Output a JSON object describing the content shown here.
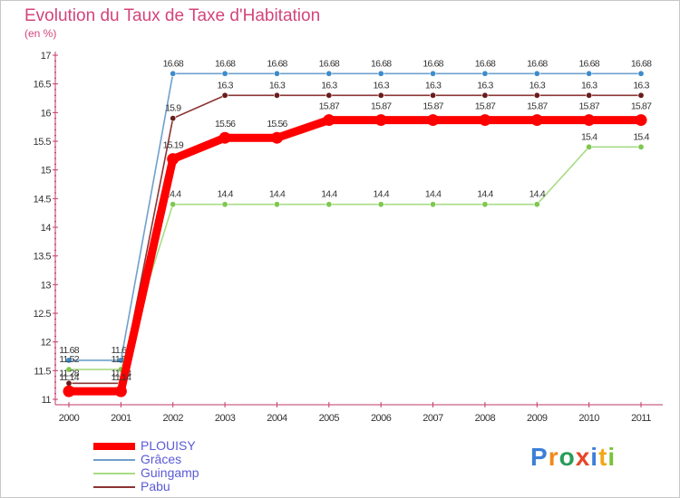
{
  "title": "Evolution du Taux de Taxe d'Habitation",
  "subtitle": "(en %)",
  "logo": {
    "text": "Proxiti",
    "colors": [
      "#3b7fd8",
      "#f08a1a",
      "#2a9c5a",
      "#e8452a",
      "#3b7fd8",
      "#f0a81a",
      "#7cc23a"
    ]
  },
  "chart_data": {
    "type": "line",
    "title": "Evolution du Taux de Taxe d'Habitation",
    "subtitle": "(en %)",
    "xlabel": "",
    "ylabel": "",
    "ylim": [
      11,
      17
    ],
    "yticks": [
      11,
      11.5,
      12,
      12.5,
      13,
      13.5,
      14,
      14.5,
      15,
      15.5,
      16,
      16.5,
      17
    ],
    "ytick_labels": [
      "11",
      "11.5",
      "12",
      "12.5",
      "13",
      "13.5",
      "14",
      "14.5",
      "15",
      "15.5",
      "16",
      "16.5",
      "17"
    ],
    "categories": [
      "2000",
      "2001",
      "2002",
      "2003",
      "2004",
      "2005",
      "2006",
      "2007",
      "2008",
      "2009",
      "2010",
      "2011"
    ],
    "grid": false,
    "legend_position": "bottom-left",
    "series": [
      {
        "name": "Grâces",
        "color": "#6fa0cc",
        "marker_color": "#3d8ccc",
        "values": [
          11.68,
          11.68,
          16.68,
          16.68,
          16.68,
          16.68,
          16.68,
          16.68,
          16.68,
          16.68,
          16.68,
          16.68
        ],
        "labels": [
          "11.68",
          "11.68",
          "16.68",
          "16.68",
          "16.68",
          "16.68",
          "16.68",
          "16.68",
          "16.68",
          "16.68",
          "16.68",
          "16.68"
        ]
      },
      {
        "name": "Guingamp",
        "color": "#a8dc84",
        "marker_color": "#7ec850",
        "values": [
          11.52,
          11.52,
          14.4,
          14.4,
          14.4,
          14.4,
          14.4,
          14.4,
          14.4,
          14.4,
          15.4,
          15.4
        ],
        "labels": [
          "11.52",
          "11.52",
          "14.4",
          "14.4",
          "14.4",
          "14.4",
          "14.4",
          "14.4",
          "14.4",
          "14.4",
          "15.4",
          "15.4"
        ]
      },
      {
        "name": "Pabu",
        "color": "#8c3434",
        "marker_color": "#6a1c1c",
        "values": [
          11.28,
          11.28,
          15.9,
          16.3,
          16.3,
          16.3,
          16.3,
          16.3,
          16.3,
          16.3,
          16.3,
          16.3
        ],
        "labels": [
          "11.28",
          "11.28",
          "15.9",
          "16.3",
          "16.3",
          "16.3",
          "16.3",
          "16.3",
          "16.3",
          "16.3",
          "16.3",
          "16.3"
        ]
      },
      {
        "name": "PLOUISY",
        "color": "#ff0000",
        "marker_color": "#ff0000",
        "values": [
          11.14,
          11.14,
          15.19,
          15.56,
          15.56,
          15.87,
          15.87,
          15.87,
          15.87,
          15.87,
          15.87,
          15.87
        ],
        "labels": [
          "11.14",
          "11.14",
          "15.19",
          "15.56",
          "15.56",
          "15.87",
          "15.87",
          "15.87",
          "15.87",
          "15.87",
          "15.87",
          "15.87"
        ]
      }
    ],
    "legend": [
      {
        "name": "PLOUISY",
        "color": "#ff0000",
        "weight": "thick"
      },
      {
        "name": "Grâces",
        "color": "#6fa0cc",
        "weight": "thin"
      },
      {
        "name": "Guingamp",
        "color": "#a8dc84",
        "weight": "thin"
      },
      {
        "name": "Pabu",
        "color": "#8c3434",
        "weight": "thin"
      }
    ]
  }
}
